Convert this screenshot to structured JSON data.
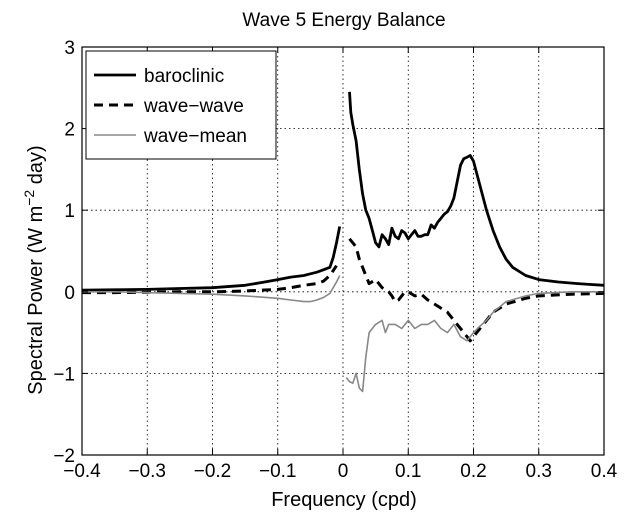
{
  "chart_data": {
    "type": "line",
    "title": "Wave 5 Energy Balance",
    "xlabel": "Frequency (cpd)",
    "ylabel": {
      "prefix": "Spectral Power (W m",
      "exponent": "−2",
      "suffix": " day)"
    },
    "xlim": [
      -0.4,
      0.4
    ],
    "ylim": [
      -2,
      3
    ],
    "xticks": [
      -0.4,
      -0.3,
      -0.2,
      -0.1,
      0,
      0.1,
      0.2,
      0.3,
      0.4
    ],
    "xtick_labels": [
      "−0.4",
      "−0.3",
      "−0.2",
      "−0.1",
      "0",
      "0.1",
      "0.2",
      "0.3",
      "0.4"
    ],
    "yticks": [
      -2,
      -1,
      0,
      1,
      2,
      3
    ],
    "ytick_labels": [
      "−2",
      "−1",
      "0",
      "1",
      "2",
      "3"
    ],
    "grid": true,
    "legend_position": "top-left",
    "series": [
      {
        "name": "baroclinic",
        "color": "#000000",
        "style": "solid",
        "segments": [
          [
            [
              -0.4,
              0.02
            ],
            [
              -0.35,
              0.025
            ],
            [
              -0.3,
              0.03
            ],
            [
              -0.25,
              0.04
            ],
            [
              -0.2,
              0.05
            ],
            [
              -0.15,
              0.08
            ],
            [
              -0.12,
              0.12
            ],
            [
              -0.1,
              0.15
            ],
            [
              -0.08,
              0.18
            ],
            [
              -0.06,
              0.2
            ],
            [
              -0.05,
              0.22
            ],
            [
              -0.04,
              0.24
            ],
            [
              -0.03,
              0.27
            ],
            [
              -0.02,
              0.3
            ],
            [
              -0.015,
              0.42
            ],
            [
              -0.01,
              0.6
            ],
            [
              -0.005,
              0.8
            ]
          ],
          [
            [
              0.01,
              2.45
            ],
            [
              0.012,
              2.2
            ],
            [
              0.015,
              2.05
            ],
            [
              0.02,
              1.85
            ],
            [
              0.025,
              1.5
            ],
            [
              0.03,
              1.2
            ],
            [
              0.035,
              1.0
            ],
            [
              0.04,
              0.9
            ],
            [
              0.045,
              0.75
            ],
            [
              0.05,
              0.6
            ],
            [
              0.055,
              0.55
            ],
            [
              0.06,
              0.7
            ],
            [
              0.065,
              0.65
            ],
            [
              0.07,
              0.58
            ],
            [
              0.075,
              0.78
            ],
            [
              0.08,
              0.68
            ],
            [
              0.085,
              0.65
            ],
            [
              0.09,
              0.75
            ],
            [
              0.095,
              0.72
            ],
            [
              0.1,
              0.65
            ],
            [
              0.105,
              0.7
            ],
            [
              0.11,
              0.75
            ],
            [
              0.115,
              0.68
            ],
            [
              0.12,
              0.68
            ],
            [
              0.125,
              0.7
            ],
            [
              0.13,
              0.7
            ],
            [
              0.135,
              0.82
            ],
            [
              0.14,
              0.78
            ],
            [
              0.145,
              0.85
            ],
            [
              0.15,
              0.9
            ],
            [
              0.155,
              0.95
            ],
            [
              0.16,
              0.98
            ],
            [
              0.165,
              1.05
            ],
            [
              0.17,
              1.15
            ],
            [
              0.175,
              1.35
            ],
            [
              0.18,
              1.55
            ],
            [
              0.185,
              1.63
            ],
            [
              0.19,
              1.65
            ],
            [
              0.195,
              1.67
            ],
            [
              0.2,
              1.6
            ],
            [
              0.21,
              1.3
            ],
            [
              0.22,
              1.0
            ],
            [
              0.23,
              0.75
            ],
            [
              0.24,
              0.55
            ],
            [
              0.25,
              0.4
            ],
            [
              0.26,
              0.3
            ],
            [
              0.28,
              0.2
            ],
            [
              0.3,
              0.15
            ],
            [
              0.33,
              0.12
            ],
            [
              0.36,
              0.1
            ],
            [
              0.38,
              0.09
            ],
            [
              0.4,
              0.08
            ]
          ]
        ]
      },
      {
        "name": "wave−wave",
        "color": "#000000",
        "style": "dashed",
        "segments": [
          [
            [
              -0.4,
              -0.01
            ],
            [
              -0.35,
              -0.01
            ],
            [
              -0.3,
              -0.005
            ],
            [
              -0.25,
              0.0
            ],
            [
              -0.2,
              0.0
            ],
            [
              -0.15,
              0.01
            ],
            [
              -0.1,
              0.03
            ],
            [
              -0.08,
              0.05
            ],
            [
              -0.06,
              0.08
            ],
            [
              -0.04,
              0.1
            ],
            [
              -0.03,
              0.13
            ],
            [
              -0.02,
              0.2
            ],
            [
              -0.01,
              0.32
            ]
          ],
          [
            [
              0.01,
              0.65
            ],
            [
              0.015,
              0.6
            ],
            [
              0.02,
              0.55
            ],
            [
              0.025,
              0.4
            ],
            [
              0.03,
              0.3
            ],
            [
              0.035,
              0.2
            ],
            [
              0.04,
              0.1
            ],
            [
              0.05,
              0.15
            ],
            [
              0.06,
              0.05
            ],
            [
              0.07,
              0.0
            ],
            [
              0.075,
              -0.05
            ],
            [
              0.08,
              -0.12
            ],
            [
              0.085,
              -0.1
            ],
            [
              0.09,
              -0.05
            ],
            [
              0.095,
              0.0
            ],
            [
              0.1,
              0.0
            ],
            [
              0.11,
              -0.05
            ],
            [
              0.12,
              -0.03
            ],
            [
              0.13,
              -0.1
            ],
            [
              0.14,
              -0.15
            ],
            [
              0.15,
              -0.2
            ],
            [
              0.16,
              -0.25
            ],
            [
              0.17,
              -0.35
            ],
            [
              0.18,
              -0.45
            ],
            [
              0.19,
              -0.55
            ],
            [
              0.195,
              -0.6
            ],
            [
              0.2,
              -0.55
            ],
            [
              0.21,
              -0.45
            ],
            [
              0.22,
              -0.35
            ],
            [
              0.23,
              -0.25
            ],
            [
              0.25,
              -0.15
            ],
            [
              0.28,
              -0.08
            ],
            [
              0.3,
              -0.05
            ],
            [
              0.35,
              -0.03
            ],
            [
              0.4,
              -0.02
            ]
          ]
        ]
      },
      {
        "name": "wave−mean",
        "color": "#888888",
        "style": "solid",
        "segments": [
          [
            [
              -0.4,
              0.0
            ],
            [
              -0.35,
              0.0
            ],
            [
              -0.3,
              -0.01
            ],
            [
              -0.25,
              -0.02
            ],
            [
              -0.2,
              -0.03
            ],
            [
              -0.15,
              -0.05
            ],
            [
              -0.1,
              -0.08
            ],
            [
              -0.08,
              -0.1
            ],
            [
              -0.06,
              -0.12
            ],
            [
              -0.05,
              -0.12
            ],
            [
              -0.04,
              -0.1
            ],
            [
              -0.03,
              -0.07
            ],
            [
              -0.02,
              -0.02
            ],
            [
              -0.015,
              0.05
            ],
            [
              -0.01,
              0.12
            ],
            [
              -0.005,
              0.2
            ]
          ],
          [
            [
              0.005,
              -1.05
            ],
            [
              0.01,
              -1.1
            ],
            [
              0.015,
              -1.12
            ],
            [
              0.02,
              -1.0
            ],
            [
              0.025,
              -1.18
            ],
            [
              0.03,
              -1.22
            ],
            [
              0.035,
              -0.8
            ],
            [
              0.04,
              -0.5
            ],
            [
              0.05,
              -0.4
            ],
            [
              0.06,
              -0.35
            ],
            [
              0.065,
              -0.5
            ],
            [
              0.07,
              -0.4
            ],
            [
              0.08,
              -0.4
            ],
            [
              0.09,
              -0.45
            ],
            [
              0.1,
              -0.35
            ],
            [
              0.11,
              -0.45
            ],
            [
              0.12,
              -0.4
            ],
            [
              0.13,
              -0.4
            ],
            [
              0.14,
              -0.35
            ],
            [
              0.15,
              -0.45
            ],
            [
              0.16,
              -0.5
            ],
            [
              0.17,
              -0.4
            ],
            [
              0.18,
              -0.55
            ],
            [
              0.19,
              -0.6
            ],
            [
              0.2,
              -0.5
            ],
            [
              0.21,
              -0.42
            ],
            [
              0.22,
              -0.35
            ],
            [
              0.23,
              -0.25
            ],
            [
              0.25,
              -0.12
            ],
            [
              0.28,
              -0.05
            ],
            [
              0.3,
              -0.02
            ],
            [
              0.35,
              0.0
            ],
            [
              0.4,
              0.0
            ]
          ]
        ]
      }
    ]
  }
}
